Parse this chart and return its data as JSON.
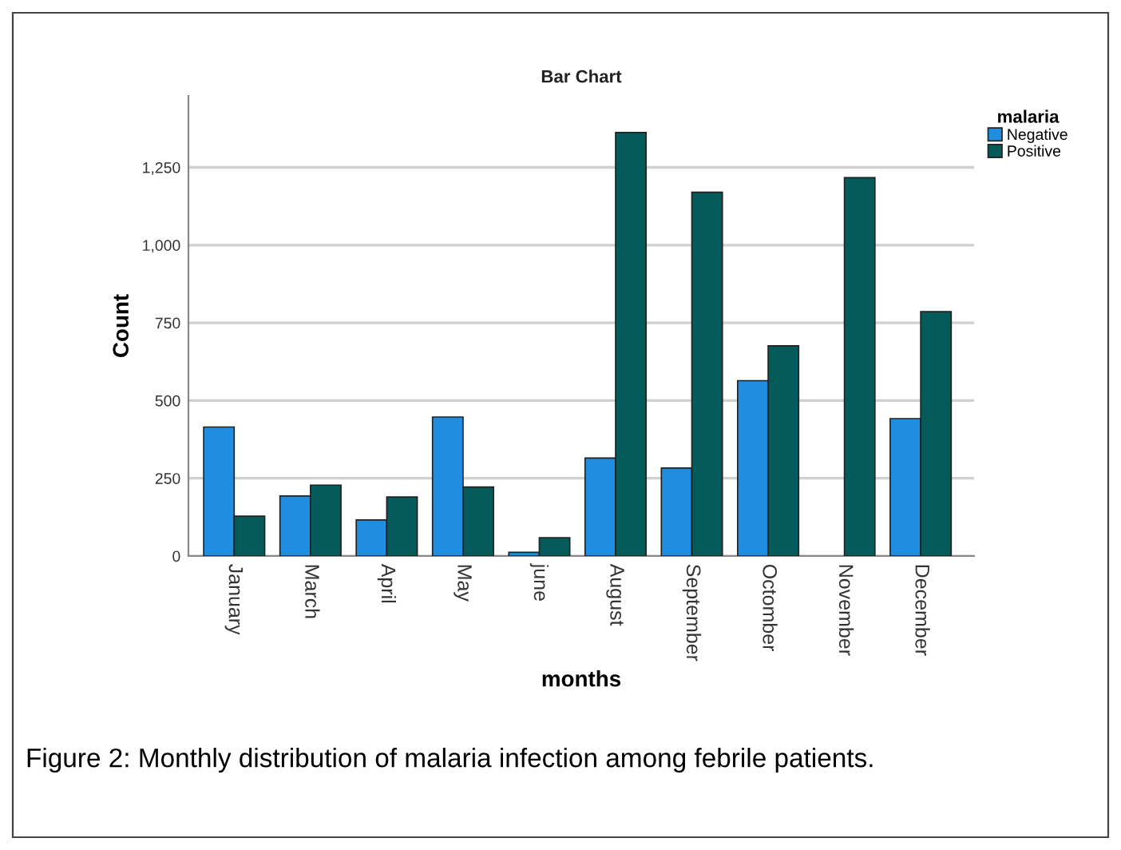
{
  "chart_data": {
    "type": "bar",
    "title": "Bar Chart",
    "xlabel": "months",
    "ylabel": "Count",
    "legend_title": "malaria",
    "categories": [
      "January",
      "March",
      "April",
      "May",
      "june",
      "August",
      "September",
      "Octomber",
      "November",
      "December"
    ],
    "series": [
      {
        "name": "Negative",
        "color": "#1f8ee0",
        "values": [
          415,
          193,
          116,
          447,
          12,
          315,
          283,
          564,
          null,
          442
        ]
      },
      {
        "name": "Positive",
        "color": "#055b59",
        "values": [
          128,
          228,
          190,
          222,
          59,
          1362,
          1170,
          676,
          1217,
          786
        ]
      }
    ],
    "ylim": [
      0,
      1480
    ],
    "yticks": [
      0,
      250,
      500,
      750,
      {
        "value": 1000,
        "label": "1,000"
      },
      {
        "value": 1250,
        "label": "1,250"
      }
    ],
    "grid": "y",
    "legend": "top right",
    "annotations": [
      "Figure 2: Monthly distribution of malaria infection among febrile patients."
    ]
  }
}
